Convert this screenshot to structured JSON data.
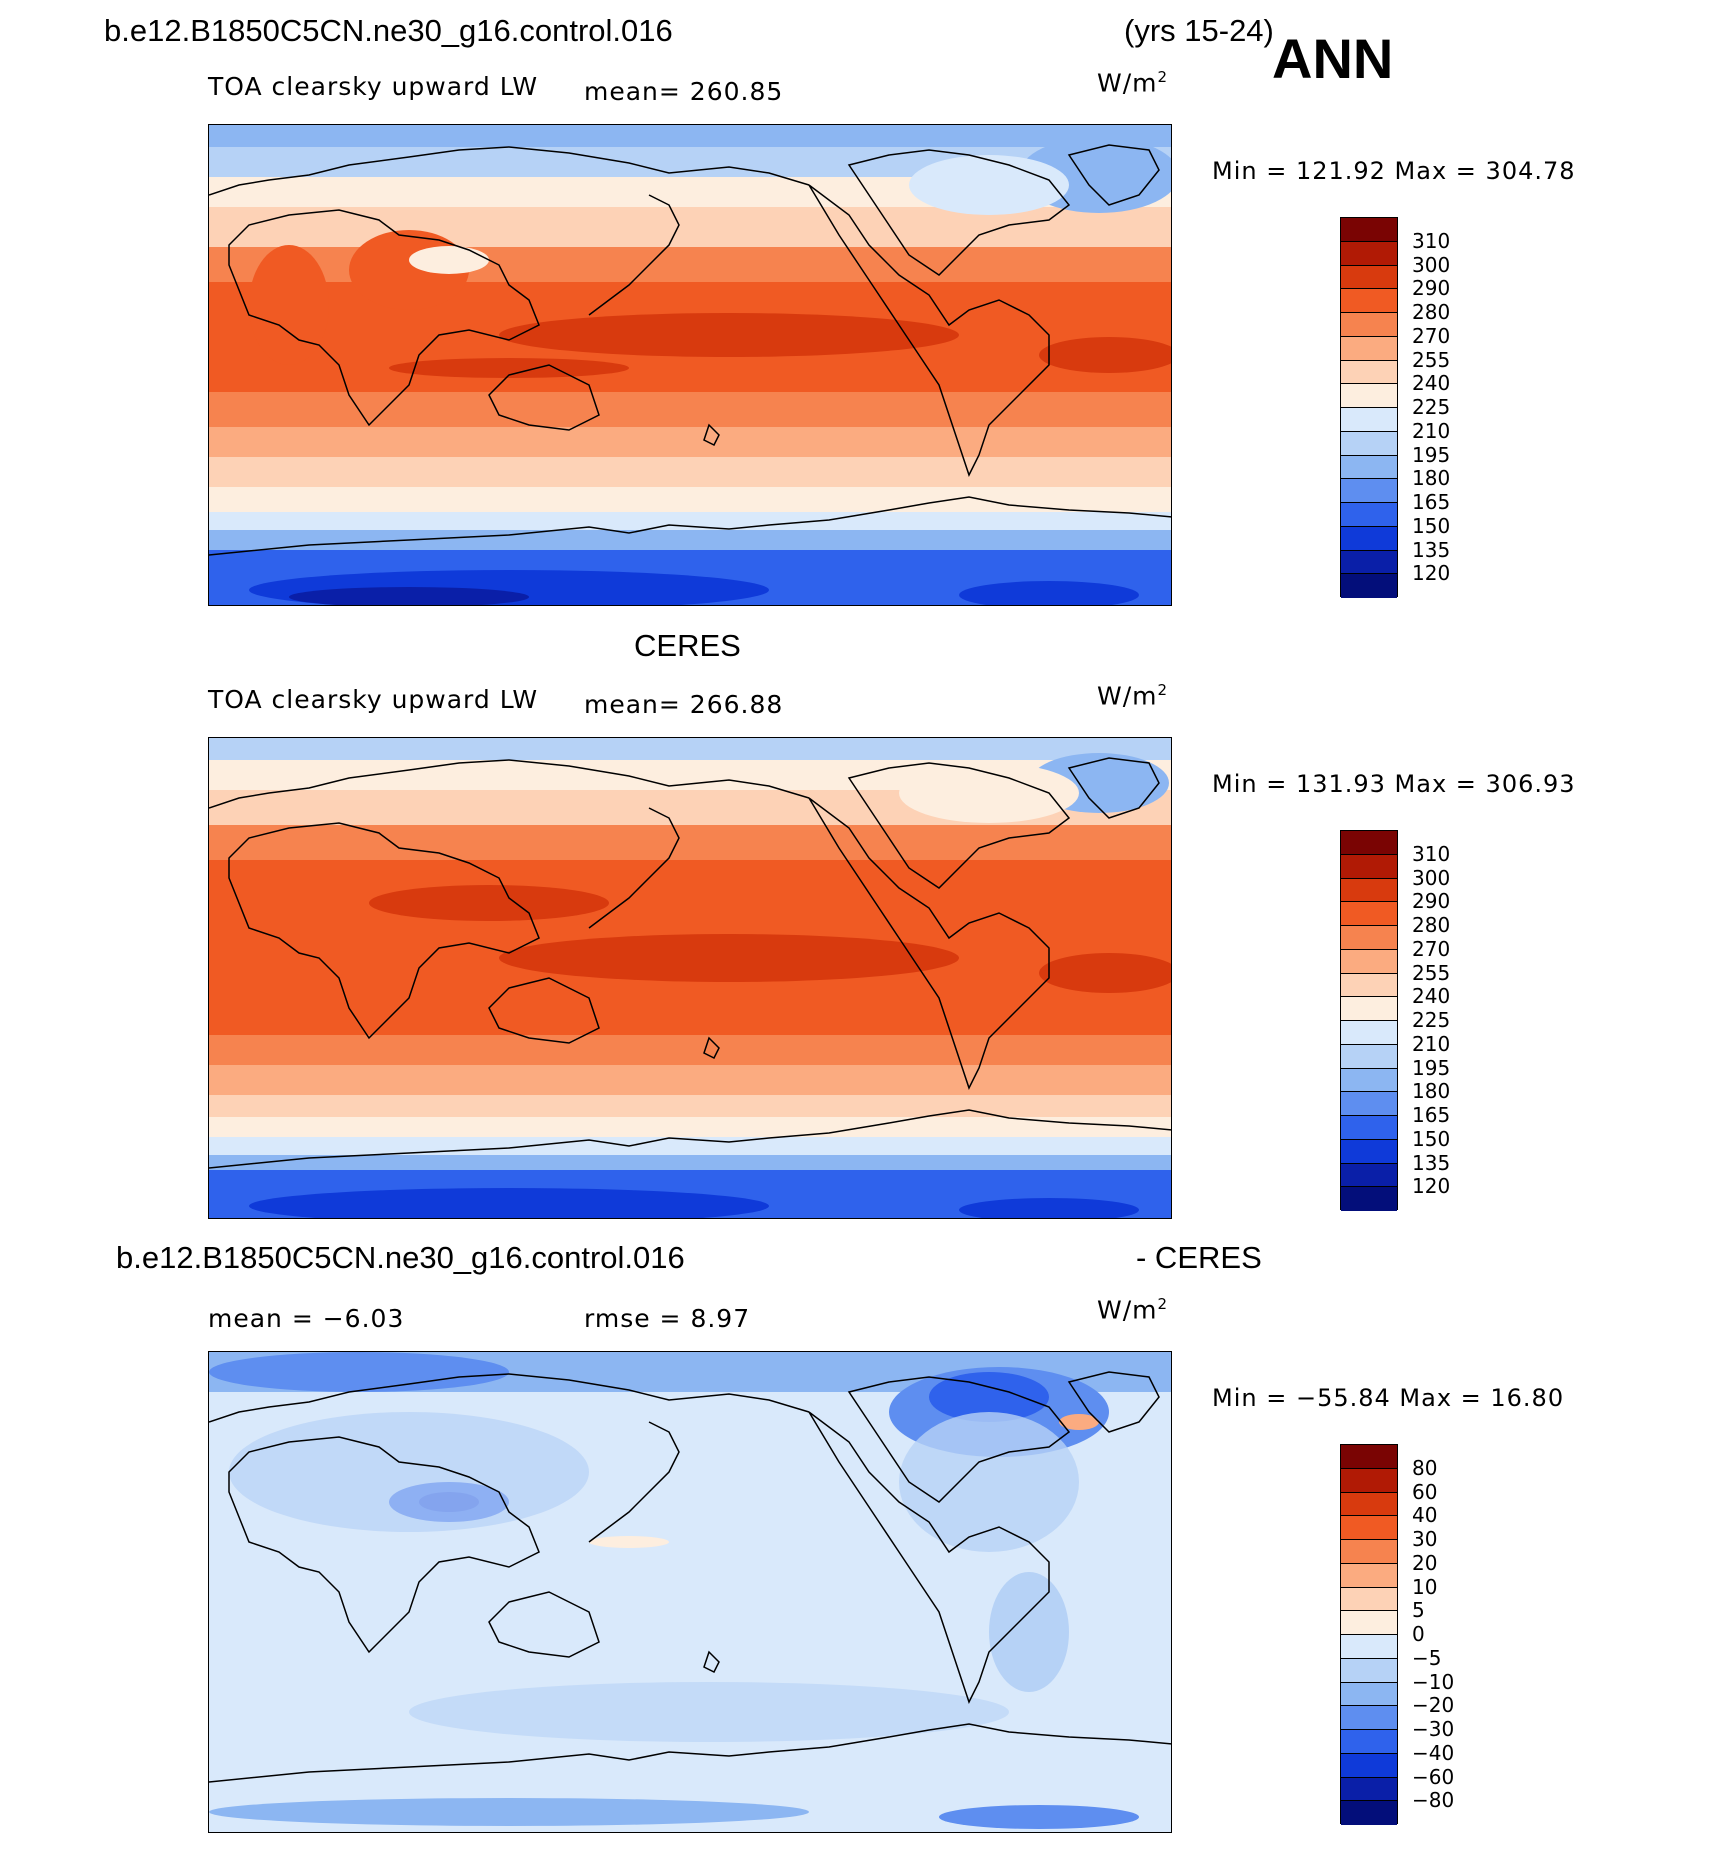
{
  "header": {
    "case_name": "b.e12.B1850C5CN.ne30_g16.control.016",
    "years": "(yrs 15-24)",
    "season": "ANN"
  },
  "panels": [
    {
      "title": "",
      "field": "TOA clearsky upward LW",
      "stat1": "mean= 260.85",
      "stat2": "",
      "units": "W/m",
      "units_exp": "2",
      "minmax": "Min = 121.92 Max = 304.78",
      "levels": [
        "310",
        "300",
        "290",
        "280",
        "270",
        "255",
        "240",
        "225",
        "210",
        "195",
        "180",
        "165",
        "150",
        "135",
        "120"
      ],
      "kind": "model"
    },
    {
      "title": "CERES",
      "field": "TOA clearsky upward LW",
      "stat1": "mean= 266.88",
      "stat2": "",
      "units": "W/m",
      "units_exp": "2",
      "minmax": "Min = 131.93 Max = 306.93",
      "levels": [
        "310",
        "300",
        "290",
        "280",
        "270",
        "255",
        "240",
        "225",
        "210",
        "195",
        "180",
        "165",
        "150",
        "135",
        "120"
      ],
      "kind": "obs"
    },
    {
      "title": "b.e12.B1850C5CN.ne30_g16.control.016",
      "title_suffix": "- CERES",
      "field": "",
      "stat1": "mean =   −6.03",
      "stat2": "rmse =    8.97",
      "units": "W/m",
      "units_exp": "2",
      "minmax": "Min = −55.84 Max =   16.80",
      "levels": [
        "80",
        "60",
        "40",
        "30",
        "20",
        "10",
        "5",
        "0",
        "−5",
        "−10",
        "−20",
        "−30",
        "−40",
        "−60",
        "−80"
      ],
      "kind": "diff"
    }
  ],
  "colors": {
    "absolute_scale": [
      "#7a0403",
      "#b11a05",
      "#d83a0e",
      "#f05a23",
      "#f6834f",
      "#fbab80",
      "#fdd2b6",
      "#fdeedf",
      "#d9e9fb",
      "#b6d2f6",
      "#8cb6f2",
      "#5e8ef0",
      "#2f62ec",
      "#0f3ad9",
      "#0a1fa8",
      "#030e7a"
    ],
    "diff_scale": [
      "#7a0403",
      "#b11a05",
      "#d83a0e",
      "#f05a23",
      "#f6834f",
      "#fbab80",
      "#fdd2b6",
      "#fdeedf",
      "#d9e9fb",
      "#b6d2f6",
      "#8cb6f2",
      "#5e8ef0",
      "#2f62ec",
      "#0f3ad9",
      "#0a1fa8",
      "#030e7a"
    ]
  }
}
